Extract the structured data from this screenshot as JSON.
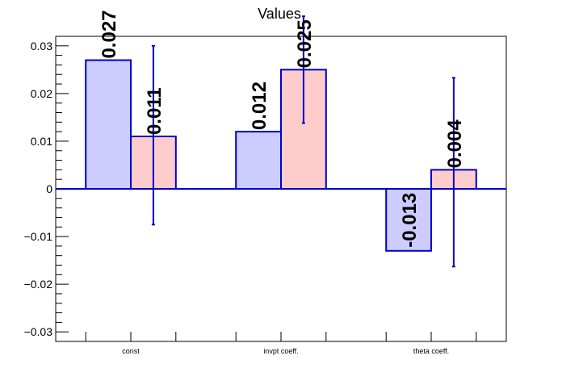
{
  "chart_data": {
    "type": "bar",
    "title": "Values",
    "xlabel": "",
    "ylabel": "",
    "ylim": [
      -0.032,
      0.032
    ],
    "y_ticks": [
      "0.03",
      "0.02",
      "0.01",
      "0",
      "−0.01",
      "−0.02",
      "−0.03"
    ],
    "y_tick_values": [
      0.03,
      0.02,
      0.01,
      0,
      -0.01,
      -0.02,
      -0.03
    ],
    "categories": [
      "const",
      "invpt coeff.",
      "theta coeff."
    ],
    "grid": false,
    "series": [
      {
        "color_fill": "#ccccff",
        "color_edge": "#0000cc",
        "values": [
          0.027,
          0.012,
          -0.013
        ],
        "labels": [
          "0.027",
          "0.012",
          "-0.013"
        ],
        "errors": [
          null,
          null,
          null
        ]
      },
      {
        "color_fill": "#ffcccc",
        "color_edge": "#0000cc",
        "values": [
          0.011,
          0.025,
          0.004
        ],
        "labels": [
          "0.011",
          "0.025",
          "0.004"
        ],
        "errors": [
          [
            -0.0075,
            0.03
          ],
          [
            0.0138,
            0.0362
          ],
          [
            -0.0163,
            0.0233
          ]
        ]
      }
    ]
  }
}
